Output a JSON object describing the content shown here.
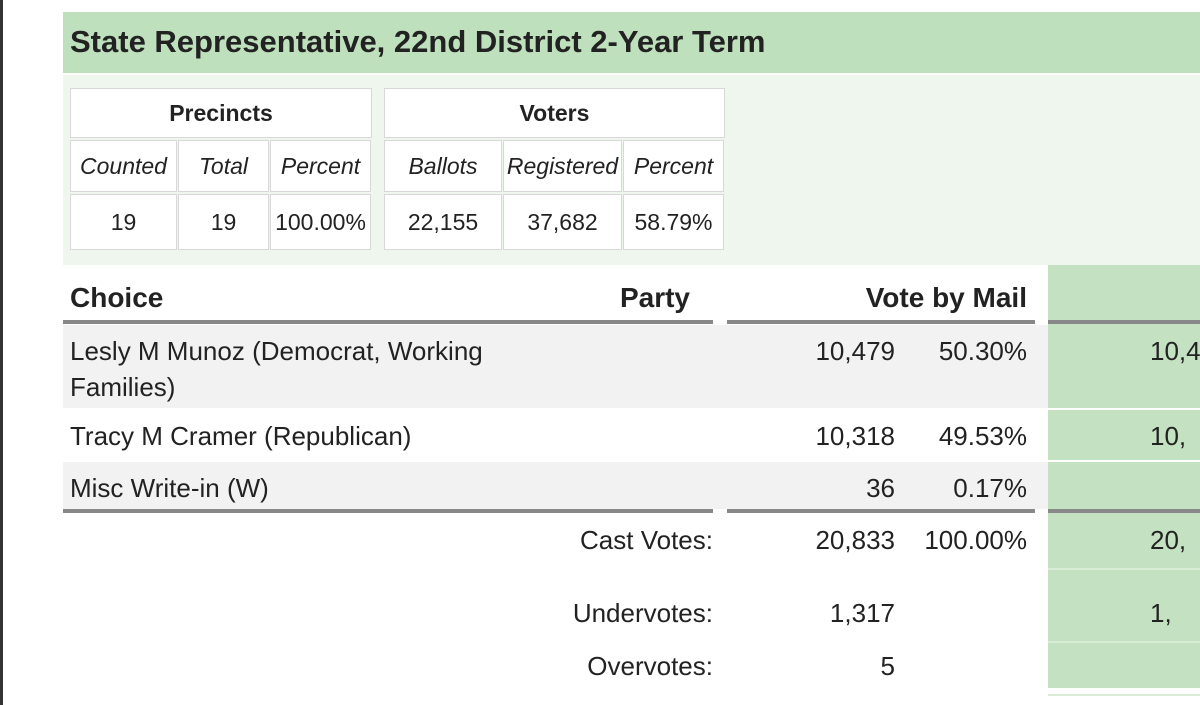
{
  "title": "State Representative, 22nd District 2-Year Term",
  "precincts": {
    "header": "Precincts",
    "columns": [
      "Counted",
      "Total",
      "Percent"
    ],
    "values": [
      "19",
      "19",
      "100.00%"
    ]
  },
  "voters": {
    "header": "Voters",
    "columns": [
      "Ballots",
      "Registered",
      "Percent"
    ],
    "values": [
      "22,155",
      "37,682",
      "58.79%"
    ]
  },
  "results": {
    "columns": [
      "Choice",
      "Party",
      "Vote by Mail"
    ],
    "rows": [
      {
        "choice": "Lesly M Munoz (Democrat, Working Families)",
        "votes": "10,479",
        "percent": "50.30%",
        "next": "10,4"
      },
      {
        "choice": "Tracy M Cramer (Republican)",
        "votes": "10,318",
        "percent": "49.53%",
        "next": "10,"
      },
      {
        "choice": "Misc Write-in (W)",
        "votes": "36",
        "percent": "0.17%"
      }
    ],
    "totals": [
      {
        "label": "Cast Votes:",
        "votes": "20,833",
        "percent": "100.00%",
        "next": "20,"
      },
      {
        "label": "Undervotes:",
        "votes": "1,317",
        "next": "1,"
      },
      {
        "label": "Overvotes:",
        "votes": "5"
      }
    ]
  }
}
